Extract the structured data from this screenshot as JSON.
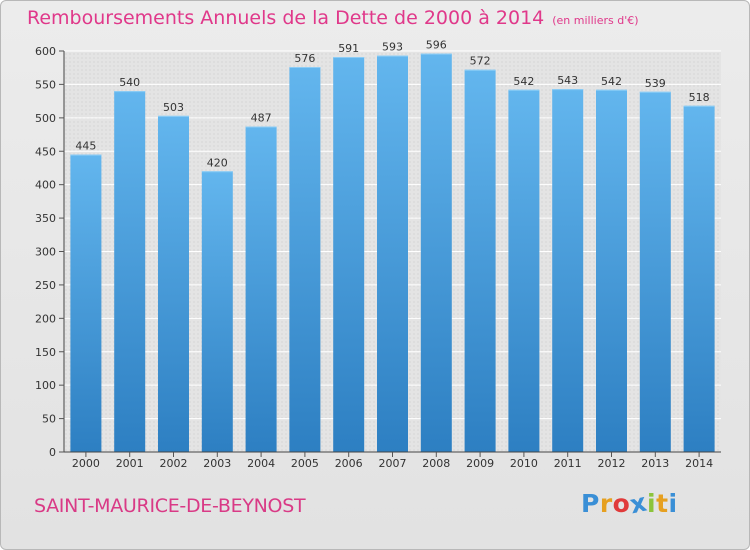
{
  "title": "Remboursements Annuels de la Dette de 2000 à 2014",
  "subtitle": "(en milliers d'€)",
  "commune": "SAINT-MAURICE-DE-BEYNOST",
  "logo": {
    "letters": [
      "P",
      "r",
      "o",
      "x",
      "i",
      "t",
      "i"
    ],
    "colors": [
      "#3a8fd6",
      "#e6a020",
      "#e03a3a",
      "#3a8fd6",
      "#8cc43c",
      "#e6a020",
      "#3a8fd6"
    ]
  },
  "colors": {
    "bar_top": "#63b6ee",
    "bar_bottom": "#2d7fc2",
    "title": "#e0388a",
    "grid": "#ffffff"
  },
  "chart_data": {
    "type": "bar",
    "categories": [
      "2000",
      "2001",
      "2002",
      "2003",
      "2004",
      "2005",
      "2006",
      "2007",
      "2008",
      "2009",
      "2010",
      "2011",
      "2012",
      "2013",
      "2014"
    ],
    "values": [
      445,
      540,
      503,
      420,
      487,
      576,
      591,
      593,
      596,
      572,
      542,
      543,
      542,
      539,
      518
    ],
    "value_labels": [
      "445",
      "540",
      "503",
      "420",
      "487",
      "576",
      "591",
      "593",
      "596",
      "572",
      "542",
      "543",
      "542",
      "539",
      "518"
    ],
    "yticks": [
      "0",
      "50",
      "100",
      "150",
      "200",
      "250",
      "300",
      "350",
      "400",
      "450",
      "500",
      "550",
      "600"
    ],
    "ylim": [
      0,
      600
    ],
    "grid": true
  }
}
